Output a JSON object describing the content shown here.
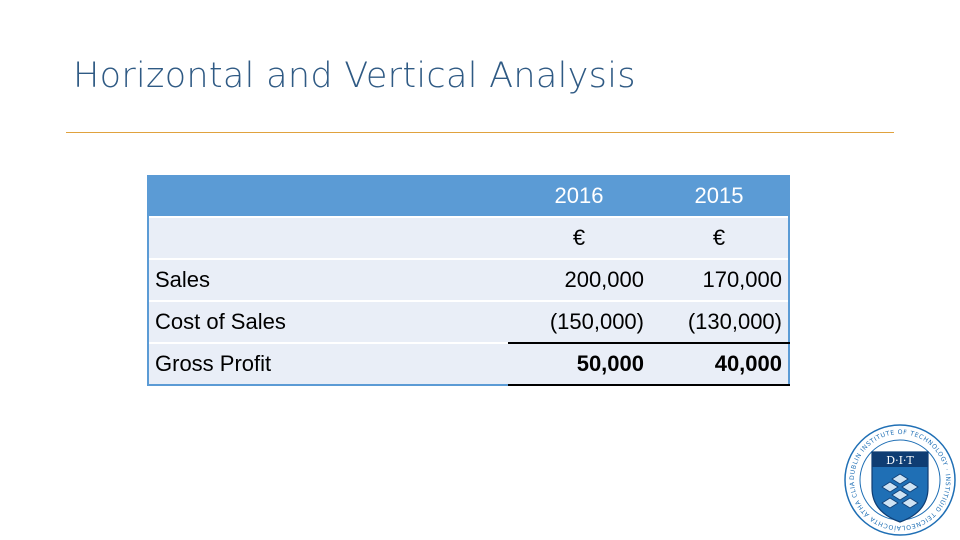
{
  "slide": {
    "title": "Horizontal and Vertical Analysis"
  },
  "table": {
    "headers": [
      "",
      "2016",
      "2015"
    ],
    "currency_row": [
      "",
      "€",
      "€"
    ],
    "rows": [
      {
        "label": "Sales",
        "y2016": "200,000",
        "y2015": "170,000"
      },
      {
        "label": "Cost of Sales",
        "y2016": "(150,000)",
        "y2015": "(130,000)"
      },
      {
        "label": "Gross Profit",
        "y2016": "50,000",
        "y2015": "40,000"
      }
    ]
  },
  "logo": {
    "emblem_text": "D·I·T",
    "ring_text": "DUBLIN INSTITUTE OF TECHNOLOGY · INSTITIÚID TEICNEOLAÍOCHTA ÁTHA CLIATH",
    "colors": {
      "blue": "#1f6fb5",
      "dark": "#0f3d73",
      "light": "#cfe3f4"
    }
  },
  "colors": {
    "title": "#2f5a84",
    "rule": "#e0a23e",
    "header_fill": "#5b9bd5",
    "row_fill": "#e9eef7"
  }
}
